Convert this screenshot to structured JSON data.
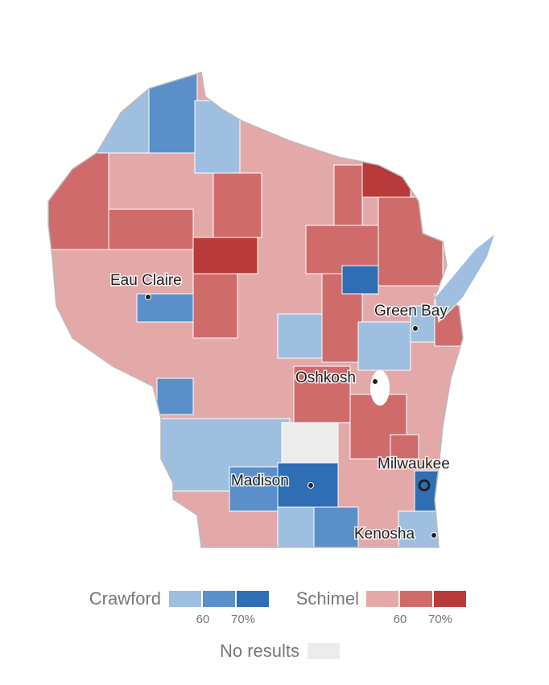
{
  "cities": [
    {
      "label": "Eau Claire"
    },
    {
      "label": "Green Bay"
    },
    {
      "label": "Oshkosh"
    },
    {
      "label": "Milwaukee"
    },
    {
      "label": "Madison"
    },
    {
      "label": "Kenosha"
    }
  ],
  "legend": {
    "groups": [
      {
        "name": "Crawford",
        "colors": [
          "#9ebfe0",
          "#5b8fca",
          "#2f6db5"
        ],
        "ticks": [
          "60",
          "70%"
        ]
      },
      {
        "name": "Schimel",
        "colors": [
          "#e3a9a9",
          "#cf6b6b",
          "#b83a3a"
        ],
        "ticks": [
          "60",
          "70%"
        ]
      }
    ],
    "no_results": {
      "label": "No results",
      "color": "#ececec"
    }
  }
}
